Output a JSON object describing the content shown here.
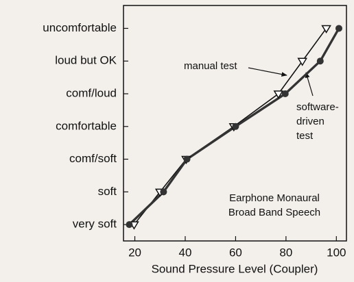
{
  "chart_data": {
    "type": "line",
    "xlabel": "Sound Pressure Level (Coupler)",
    "xlim": [
      15.5,
      104
    ],
    "xticks": [
      20,
      40,
      60,
      80,
      100
    ],
    "ylim": [
      0.5,
      7.7
    ],
    "yticks": [
      {
        "value": 1,
        "label": "very soft"
      },
      {
        "value": 2,
        "label": "soft"
      },
      {
        "value": 3,
        "label": "comf/soft"
      },
      {
        "value": 4,
        "label": "comfortable"
      },
      {
        "value": 5,
        "label": "comf/loud"
      },
      {
        "value": 6,
        "label": "loud but OK"
      },
      {
        "value": 7,
        "label": "uncomfortable"
      }
    ],
    "series": [
      {
        "name": "manual test",
        "color": "#111111",
        "marker": "triangle",
        "x": [
          19.7,
          30,
          40.4,
          59.3,
          77,
          86.5,
          96
        ],
        "values": [
          1,
          2,
          3,
          4,
          5,
          6,
          7
        ]
      },
      {
        "name": "software-driven test",
        "color": "#333333",
        "marker": "circle",
        "x": [
          17.8,
          31.4,
          40.7,
          60,
          79.7,
          93.6,
          101
        ],
        "values": [
          1,
          2,
          3,
          4,
          5,
          6,
          7
        ]
      }
    ],
    "annotations": [
      {
        "lines": [
          "manual test"
        ]
      },
      {
        "lines": [
          "software-",
          "driven",
          "test"
        ]
      },
      {
        "lines": [
          "Earphone Monaural",
          "Broad Band Speech"
        ]
      }
    ]
  }
}
